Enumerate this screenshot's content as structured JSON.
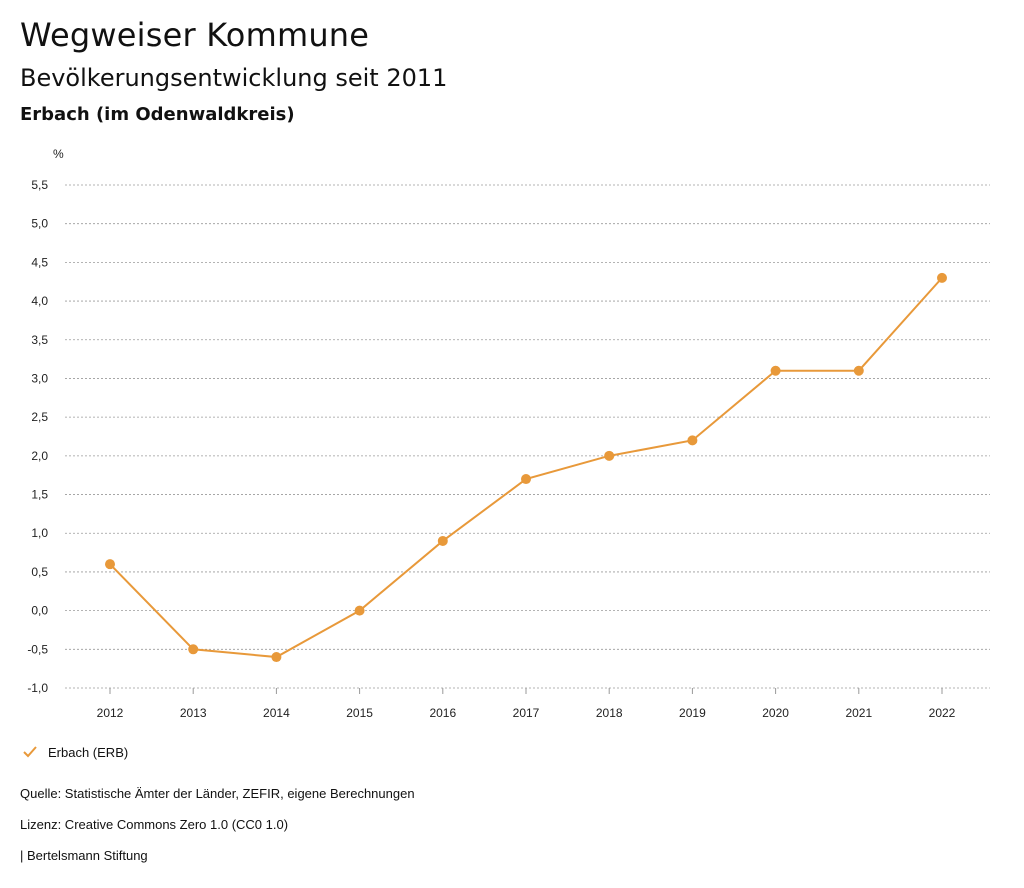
{
  "header": {
    "title": "Wegweiser Kommune",
    "subtitle": "Bevölkerungsentwicklung seit 2011",
    "region": "Erbach (im Odenwaldkreis)"
  },
  "chart_data": {
    "type": "line",
    "ylabel": "%",
    "ylim": [
      -1.0,
      5.5
    ],
    "ytick_step": 0.5,
    "grid": true,
    "categories": [
      "2012",
      "2013",
      "2014",
      "2015",
      "2016",
      "2017",
      "2018",
      "2019",
      "2020",
      "2021",
      "2022"
    ],
    "series": [
      {
        "name": "Erbach (ERB)",
        "color": "#E8993A",
        "values": [
          0.6,
          -0.5,
          -0.6,
          0.0,
          0.9,
          1.7,
          2.0,
          2.2,
          3.1,
          3.1,
          4.3
        ]
      }
    ]
  },
  "legend": {
    "label": "Erbach (ERB)",
    "icon": "check-icon"
  },
  "footer": {
    "source": "Quelle: Statistische Ämter der Länder, ZEFIR, eigene Berechnungen",
    "license": "Lizenz: Creative Commons Zero 1.0 (CC0 1.0)",
    "publisher": "| Bertelsmann Stiftung"
  },
  "colors": {
    "accent": "#E8993A",
    "grid": "#9a9a9a"
  }
}
